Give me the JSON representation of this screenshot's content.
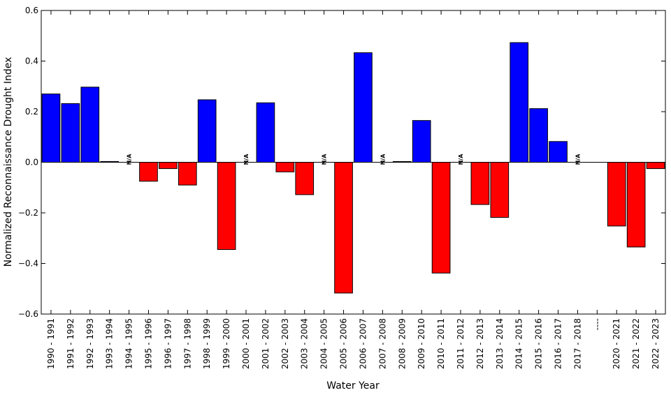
{
  "chart_data": {
    "type": "bar",
    "xlabel": "Water Year",
    "ylabel": "Normalized Reconnaissance Drought Index",
    "ylim": [
      -0.6,
      0.6
    ],
    "yticks": [
      0.6,
      0.4,
      0.2,
      0.0,
      -0.2,
      -0.4,
      -0.6
    ],
    "ytick_labels": [
      "0.6",
      "0.4",
      "0.2",
      "0.0",
      "−0.2",
      "−0.4",
      "−0.6"
    ],
    "grid": false,
    "positive_color": "#0000ff",
    "negative_color": "#ff0000",
    "na_label": "N/A",
    "categories": [
      "1990 - 1991",
      "1991 - 1992",
      "1992 - 1993",
      "1993 - 1994",
      "1994 - 1995",
      "1995 - 1996",
      "1996 - 1997",
      "1997 - 1998",
      "1998 - 1999",
      "1999 - 2000",
      "2000 - 2001",
      "2001 - 2002",
      "2002 - 2003",
      "2003 - 2004",
      "2004 - 2005",
      "2005 - 2006",
      "2006 - 2007",
      "2007 - 2008",
      "2008 - 2009",
      "2009 - 2010",
      "2010 - 2011",
      "2011 - 2012",
      "2012 - 2013",
      "2013 - 2014",
      "2014 - 2015",
      "2015 - 2016",
      "2016 - 2017",
      "2017 - 2018",
      "----",
      "2020 - 2021",
      "2021 - 2022",
      "2022 - 2023"
    ],
    "values": [
      0.27,
      0.232,
      0.297,
      0.003,
      null,
      -0.075,
      -0.025,
      -0.09,
      0.247,
      -0.345,
      null,
      0.235,
      -0.038,
      -0.128,
      null,
      -0.517,
      0.433,
      null,
      0.002,
      0.165,
      -0.438,
      null,
      -0.167,
      -0.218,
      0.473,
      0.212,
      0.082,
      null,
      null,
      -0.252,
      -0.335,
      -0.025
    ]
  }
}
